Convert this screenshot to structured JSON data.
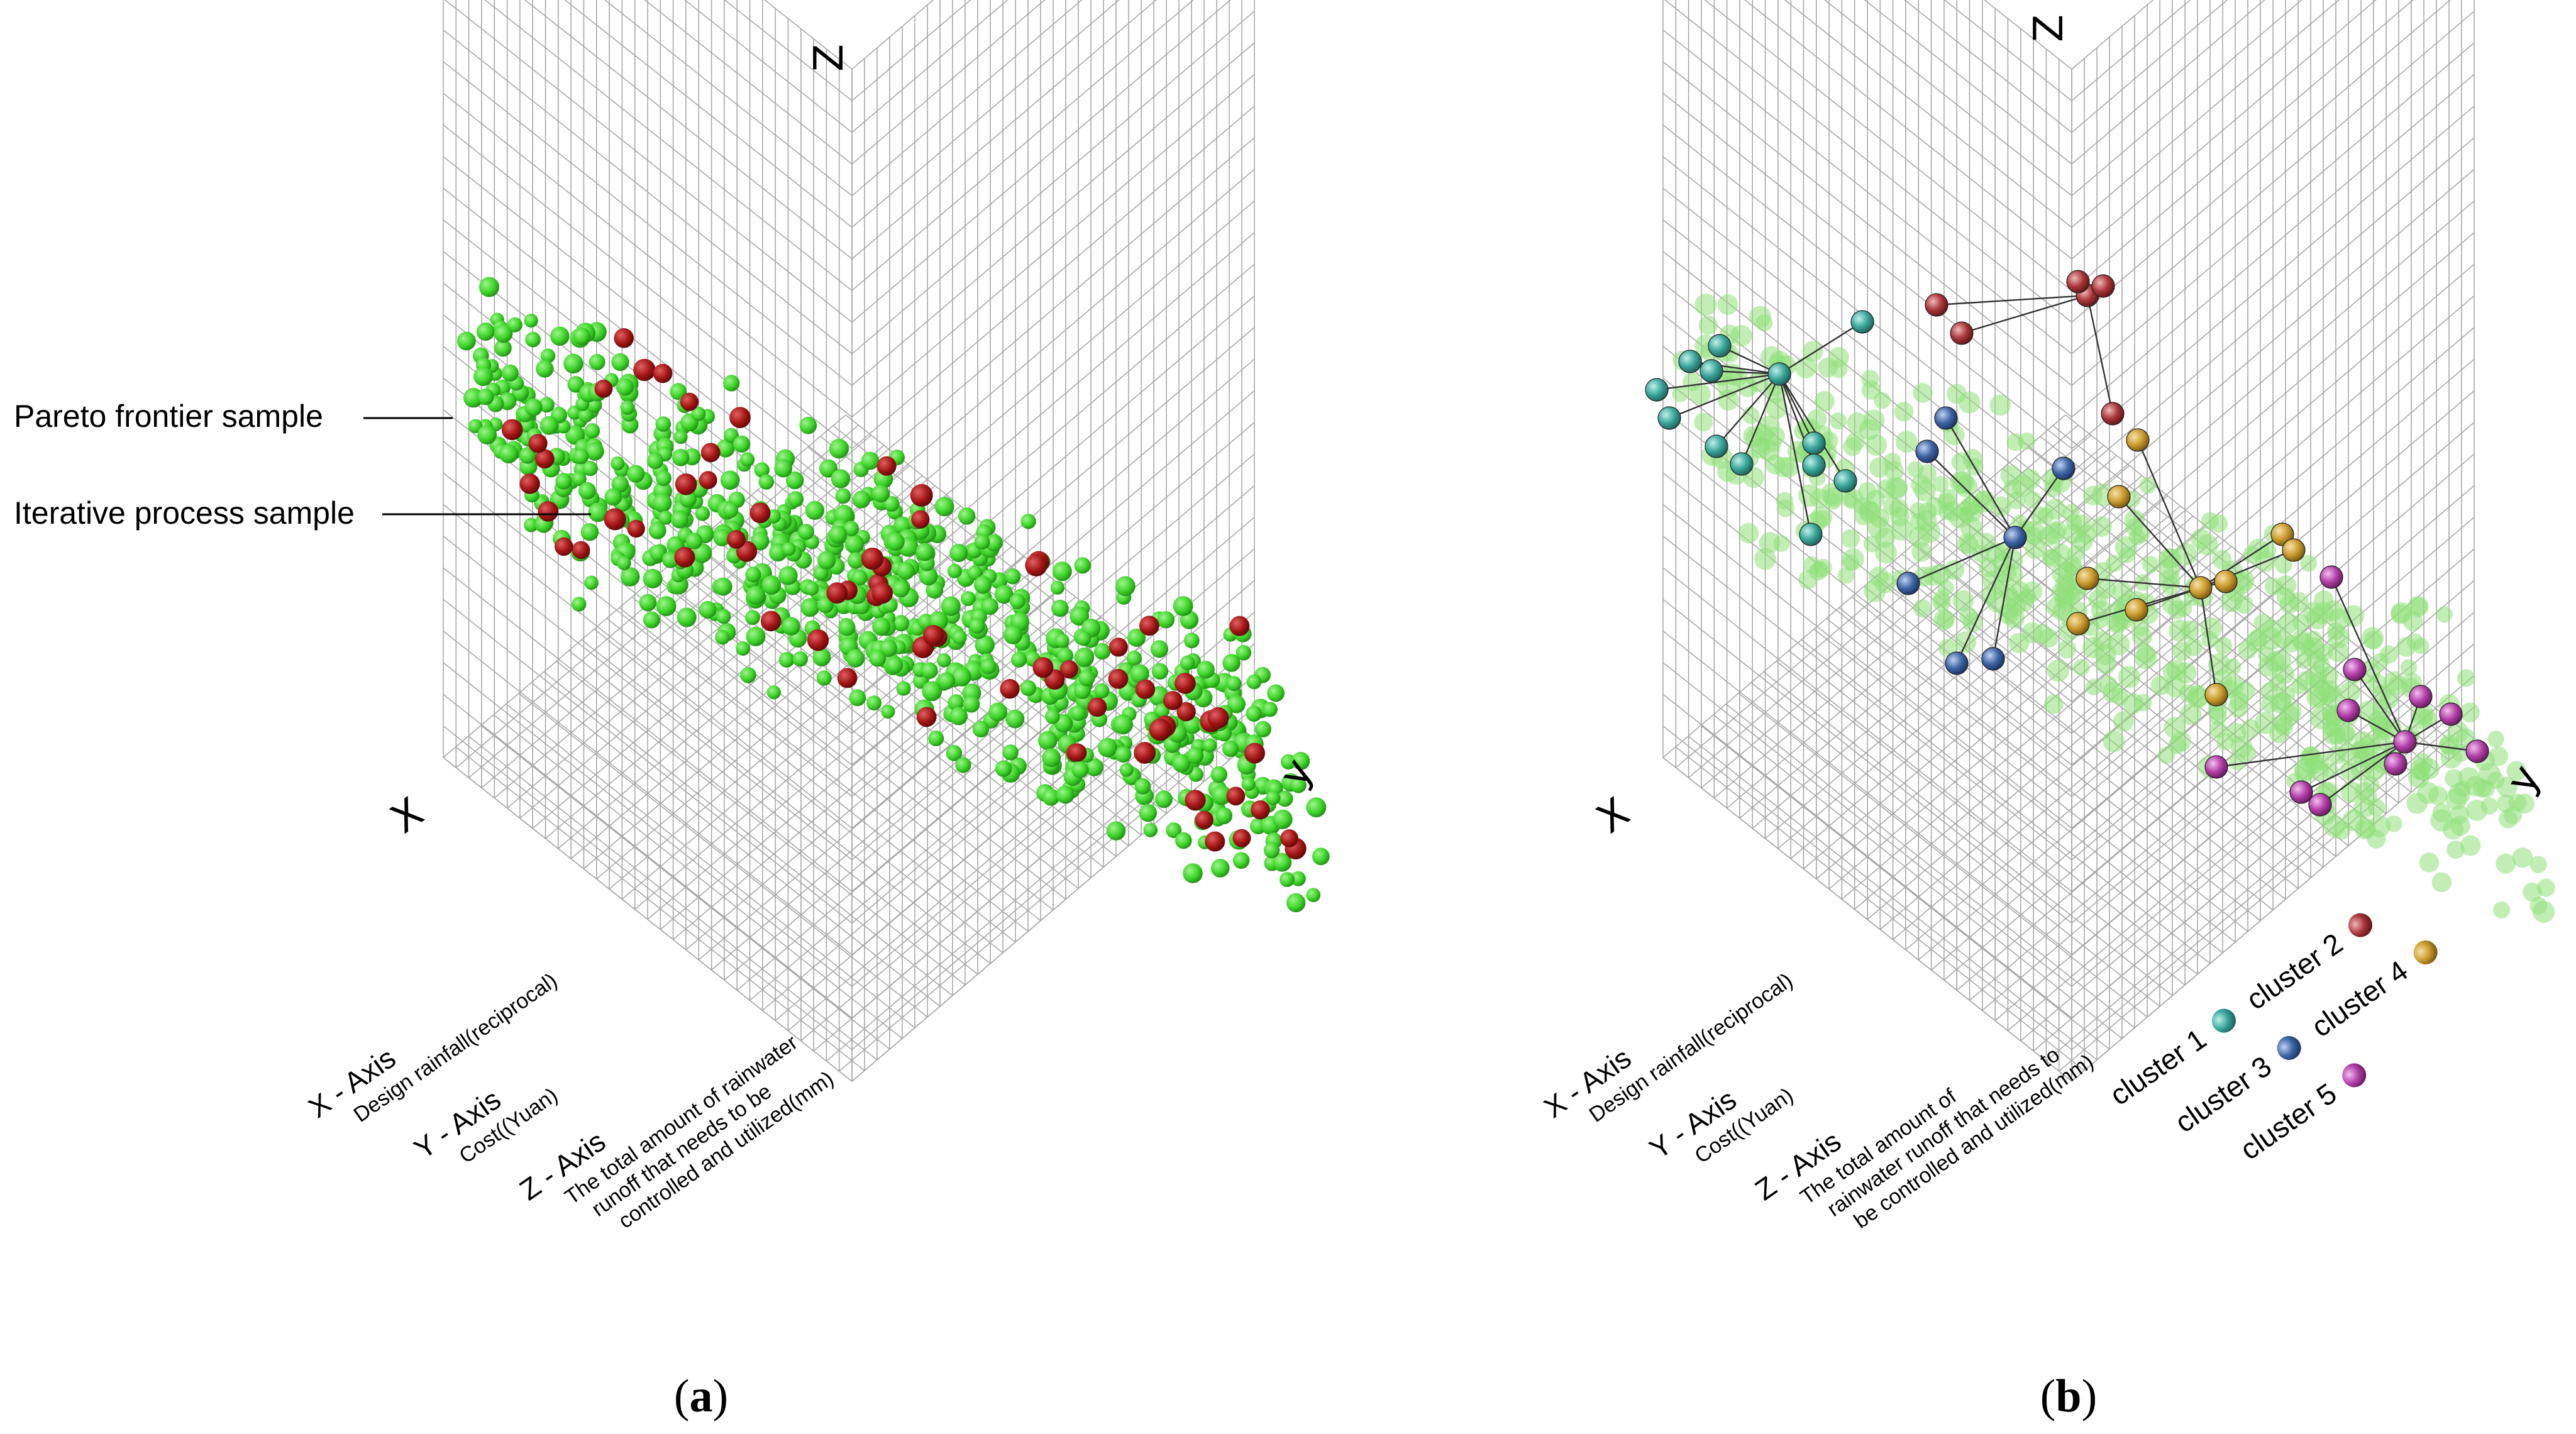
{
  "panels": [
    {
      "id": "a",
      "caption": "a",
      "axes": {
        "x_letter": "X",
        "y_letter": "y",
        "z_letter": "Z",
        "grid": true
      },
      "annotations": [
        "Pareto frontier sample",
        "Iterative process sample"
      ],
      "axis_notes": [
        {
          "title": "X - Axis",
          "lines": [
            "Design rainfall(reciprocal)"
          ]
        },
        {
          "title": "Y - Axis",
          "lines": [
            "Cost((Yuan)"
          ]
        },
        {
          "title": "Z - Axis",
          "lines": [
            "The total amount of rainwater",
            "runoff that needs to be",
            "controlled and utilized(mm)"
          ]
        }
      ]
    },
    {
      "id": "b",
      "caption": "b",
      "axes": {
        "x_letter": "X",
        "y_letter": "y",
        "z_letter": "Z",
        "grid": true
      },
      "axis_notes": [
        {
          "title": "X - Axis",
          "lines": [
            "Design rainfall(reciprocal)"
          ]
        },
        {
          "title": "Y - Axis",
          "lines": [
            "Cost((Yuan)"
          ]
        },
        {
          "title": "Z - Axis",
          "lines": [
            "The total amount of",
            "rainwater runoff that needs to",
            "be controlled and utilized(mm)"
          ]
        }
      ],
      "legend": [
        {
          "label": "cluster 1",
          "color": "#3aa59a"
        },
        {
          "label": "cluster 2",
          "color": "#a8353a"
        },
        {
          "label": "cluster 3",
          "color": "#3d64a3"
        },
        {
          "label": "cluster 4",
          "color": "#c99a2e"
        },
        {
          "label": "cluster 5",
          "color": "#b23fa8"
        }
      ]
    }
  ],
  "colors": {
    "iterative_sample": "#3fd42a",
    "pareto_sample": "#a31515",
    "faded_sample": "#8fe07a",
    "grid_line": "#a8a8a8"
  },
  "chart_data": [
    {
      "type": "scatter",
      "panel": "a",
      "series": [
        {
          "name": "Pareto frontier sample",
          "marker_color": "#a31515"
        },
        {
          "name": "Iterative process sample",
          "marker_color": "#3fd42a"
        }
      ]
    },
    {
      "type": "scatter",
      "panel": "b",
      "series": [
        {
          "name": "cluster 1",
          "marker_color": "#3aa59a"
        },
        {
          "name": "cluster 2",
          "marker_color": "#a8353a"
        },
        {
          "name": "cluster 3",
          "marker_color": "#3d64a3"
        },
        {
          "name": "cluster 4",
          "marker_color": "#c99a2e"
        },
        {
          "name": "cluster 5",
          "marker_color": "#b23fa8"
        }
      ]
    }
  ]
}
